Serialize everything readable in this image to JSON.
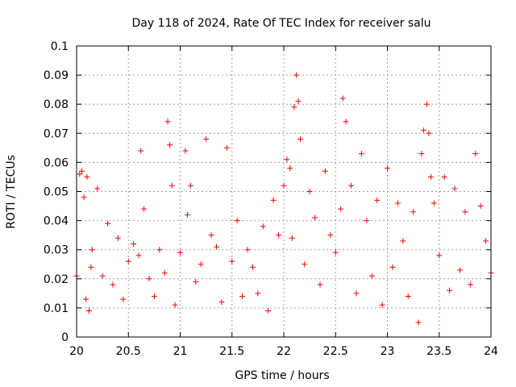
{
  "chart_data": {
    "type": "scatter",
    "title": "Day 118 of 2024, Rate Of TEC Index for receiver salu",
    "xlabel": "GPS time / hours",
    "ylabel": "ROTI / TECUs",
    "xlim": [
      20,
      24
    ],
    "ylim": [
      0,
      0.1
    ],
    "xticks": [
      "20",
      "20.5",
      "21",
      "21.5",
      "22",
      "22.5",
      "23",
      "23.5",
      "24"
    ],
    "yticks": [
      "0",
      "0.01",
      "0.02",
      "0.03",
      "0.04",
      "0.05",
      "0.06",
      "0.07",
      "0.08",
      "0.09",
      "0.1"
    ],
    "grid": true,
    "marker": "+",
    "series": [
      {
        "name": "ROTI",
        "color": "#ff0000",
        "x": [
          20.0,
          20.03,
          20.05,
          20.07,
          20.09,
          20.1,
          20.12,
          20.14,
          20.15,
          20.2,
          20.25,
          20.3,
          20.35,
          20.4,
          20.45,
          20.5,
          20.55,
          20.6,
          20.62,
          20.65,
          20.7,
          20.75,
          20.8,
          20.85,
          20.88,
          20.9,
          20.92,
          20.95,
          21.0,
          21.05,
          21.07,
          21.1,
          21.15,
          21.2,
          21.25,
          21.3,
          21.35,
          21.4,
          21.45,
          21.5,
          21.55,
          21.6,
          21.65,
          21.7,
          21.75,
          21.8,
          21.85,
          21.9,
          21.95,
          22.0,
          22.03,
          22.06,
          22.08,
          22.1,
          22.12,
          22.14,
          22.16,
          22.2,
          22.25,
          22.3,
          22.35,
          22.4,
          22.45,
          22.5,
          22.55,
          22.57,
          22.6,
          22.65,
          22.7,
          22.75,
          22.8,
          22.85,
          22.9,
          22.95,
          23.0,
          23.05,
          23.1,
          23.15,
          23.2,
          23.25,
          23.3,
          23.33,
          23.35,
          23.38,
          23.4,
          23.42,
          23.45,
          23.5,
          23.55,
          23.6,
          23.65,
          23.7,
          23.75,
          23.8,
          23.85,
          23.9,
          23.95,
          24.0
        ],
        "y": [
          0.021,
          0.056,
          0.057,
          0.048,
          0.013,
          0.055,
          0.009,
          0.024,
          0.03,
          0.051,
          0.021,
          0.039,
          0.018,
          0.034,
          0.013,
          0.026,
          0.032,
          0.028,
          0.064,
          0.044,
          0.02,
          0.014,
          0.03,
          0.022,
          0.074,
          0.066,
          0.052,
          0.011,
          0.029,
          0.064,
          0.042,
          0.052,
          0.019,
          0.025,
          0.068,
          0.035,
          0.031,
          0.012,
          0.065,
          0.026,
          0.04,
          0.014,
          0.03,
          0.024,
          0.015,
          0.038,
          0.009,
          0.047,
          0.035,
          0.052,
          0.061,
          0.058,
          0.034,
          0.079,
          0.09,
          0.081,
          0.068,
          0.025,
          0.05,
          0.041,
          0.018,
          0.057,
          0.035,
          0.029,
          0.044,
          0.082,
          0.074,
          0.052,
          0.015,
          0.063,
          0.04,
          0.021,
          0.047,
          0.011,
          0.058,
          0.024,
          0.046,
          0.033,
          0.014,
          0.043,
          0.005,
          0.063,
          0.071,
          0.08,
          0.07,
          0.055,
          0.046,
          0.028,
          0.055,
          0.016,
          0.051,
          0.023,
          0.043,
          0.018,
          0.063,
          0.045,
          0.033,
          0.022
        ]
      }
    ]
  }
}
